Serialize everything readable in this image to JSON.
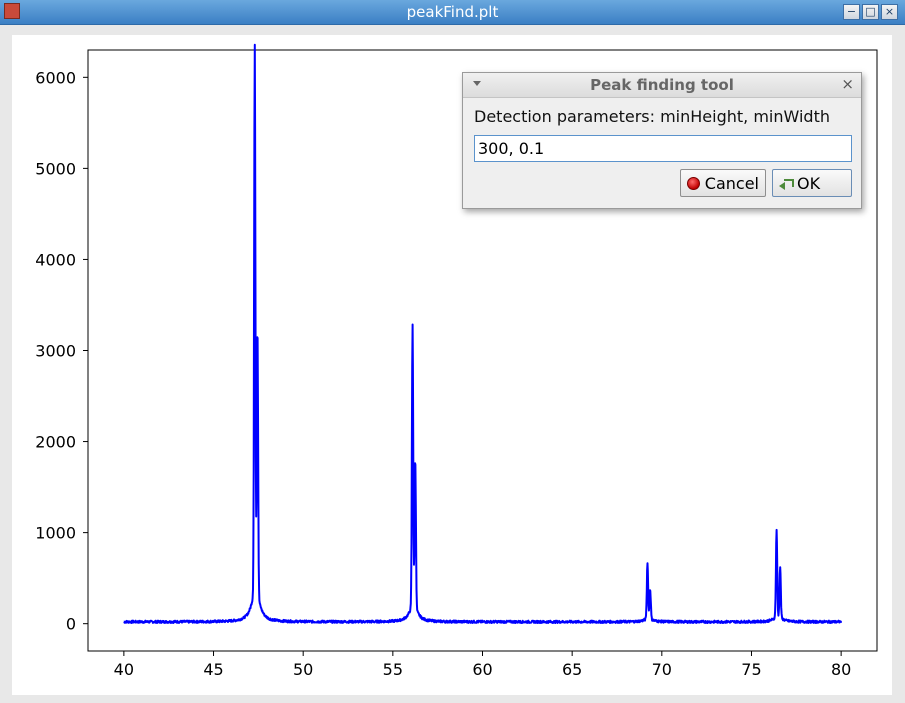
{
  "window": {
    "title": "peakFind.plt",
    "controls": [
      "minimize",
      "maximize",
      "close"
    ]
  },
  "chart_data": {
    "type": "line",
    "title": "",
    "xlabel": "",
    "ylabel": "",
    "xlim": [
      38,
      82
    ],
    "ylim": [
      -300,
      6300
    ],
    "x_ticks": [
      40,
      45,
      50,
      55,
      60,
      65,
      70,
      75,
      80
    ],
    "y_ticks": [
      0,
      1000,
      2000,
      3000,
      4000,
      5000,
      6000
    ],
    "grid": false,
    "line_color": "#0000ff",
    "series": [
      {
        "baseline": 20,
        "x_range": [
          40,
          80
        ],
        "peaks": [
          {
            "x": 47.3,
            "height": 6000
          },
          {
            "x": 47.45,
            "height": 2950
          },
          {
            "x": 56.1,
            "height": 3100
          },
          {
            "x": 56.25,
            "height": 1650
          },
          {
            "x": 69.2,
            "height": 620
          },
          {
            "x": 69.35,
            "height": 330
          },
          {
            "x": 76.4,
            "height": 960
          },
          {
            "x": 76.6,
            "height": 560
          }
        ]
      }
    ]
  },
  "dialog": {
    "title": "Peak finding tool",
    "prompt": "Detection parameters: minHeight, minWidth",
    "input_value": "300, 0.1",
    "cancel_label": "Cancel",
    "ok_label": "OK"
  }
}
